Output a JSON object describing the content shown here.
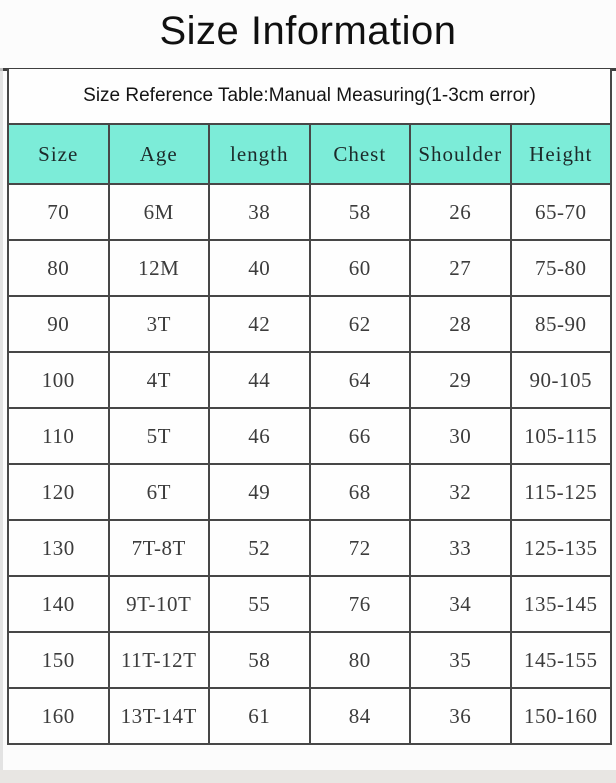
{
  "page": {
    "title": "Size Information"
  },
  "size_table": {
    "caption": "Size Reference Table:Manual Measuring(1-3cm error)",
    "columns": [
      "Size",
      "Age",
      "length",
      "Chest",
      "Shoulder",
      "Height"
    ],
    "rows": [
      [
        "70",
        "6M",
        "38",
        "58",
        "26",
        "65-70"
      ],
      [
        "80",
        "12M",
        "40",
        "60",
        "27",
        "75-80"
      ],
      [
        "90",
        "3T",
        "42",
        "62",
        "28",
        "85-90"
      ],
      [
        "100",
        "4T",
        "44",
        "64",
        "29",
        "90-105"
      ],
      [
        "110",
        "5T",
        "46",
        "66",
        "30",
        "105-115"
      ],
      [
        "120",
        "6T",
        "49",
        "68",
        "32",
        "115-125"
      ],
      [
        "130",
        "7T-8T",
        "52",
        "72",
        "33",
        "125-135"
      ],
      [
        "140",
        "9T-10T",
        "55",
        "76",
        "34",
        "135-145"
      ],
      [
        "150",
        "11T-12T",
        "58",
        "80",
        "35",
        "145-155"
      ],
      [
        "160",
        "13T-14T",
        "61",
        "84",
        "36",
        "150-160"
      ]
    ]
  },
  "colors": {
    "header_bg": "#7cecd8",
    "border": "#474747"
  }
}
